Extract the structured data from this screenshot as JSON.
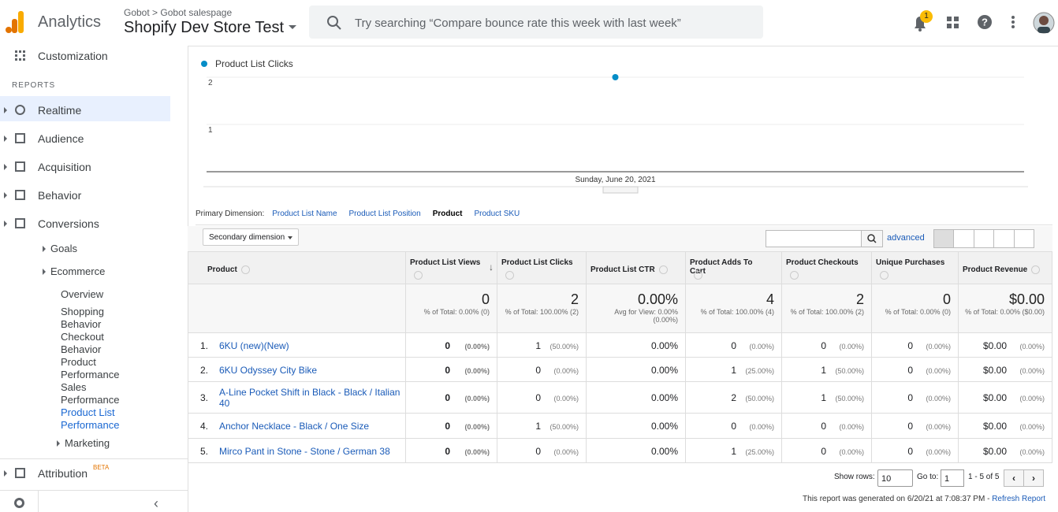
{
  "header": {
    "app": "Analytics",
    "account": "Gobot",
    "property_group": "Gobot salespage",
    "property": "Shopify Dev Store Test",
    "search_placeholder": "Try searching “Compare bounce rate this week with last week”",
    "notifications": "1"
  },
  "sidebar": {
    "items": [
      "Customization",
      "REPORTS",
      "Realtime",
      "Audience",
      "Acquisition",
      "Behavior",
      "Conversions",
      "Goals",
      "Ecommerce",
      "Overview",
      "Shopping Behavior",
      "Checkout Behavior",
      "Product Performance",
      "Sales Performance",
      "Product List Performance",
      "Marketing",
      "Attribution"
    ],
    "beta": "BETA"
  },
  "chart": {
    "legend": "Product List Clicks",
    "x": [
      "Sunday, June 20, 2021"
    ],
    "values": [
      2
    ],
    "ylim": [
      0,
      2.2
    ],
    "yticks": [
      1,
      2
    ]
  },
  "dimensions": {
    "label": "Primary Dimension:",
    "options": [
      "Product List Name",
      "Product List Position",
      "Product",
      "Product SKU"
    ],
    "selected": "Product"
  },
  "toolbar": {
    "secondary": "Secondary dimension",
    "advanced": "advanced"
  },
  "table": {
    "columns": [
      "Product",
      "Product List Views",
      "Product List Clicks",
      "Product List CTR",
      "Product Adds To Cart",
      "Product Checkouts",
      "Unique Purchases",
      "Product Revenue"
    ],
    "totals": [
      [
        "0",
        "% of Total: 0.00% (0)"
      ],
      [
        "2",
        "% of Total: 100.00% (2)"
      ],
      [
        "0.00%",
        "Avg for View: 0.00% (0.00%)"
      ],
      [
        "4",
        "% of Total: 100.00% (4)"
      ],
      [
        "2",
        "% of Total: 100.00% (2)"
      ],
      [
        "0",
        "% of Total: 0.00% (0)"
      ],
      [
        "$0.00",
        "% of Total: 0.00% ($0.00)"
      ]
    ],
    "rows": [
      {
        "index": "1.",
        "product": "6KU (new)(New)",
        "cells": [
          [
            "0",
            "(0.00%)"
          ],
          [
            "1",
            "(50.00%)"
          ],
          [
            "0.00%"
          ],
          [
            "0",
            "(0.00%)"
          ],
          [
            "0",
            "(0.00%)"
          ],
          [
            "0",
            "(0.00%)"
          ],
          [
            "$0.00",
            "(0.00%)"
          ]
        ]
      },
      {
        "index": "2.",
        "product": "6KU Odyssey City Bike",
        "cells": [
          [
            "0",
            "(0.00%)"
          ],
          [
            "0",
            "(0.00%)"
          ],
          [
            "0.00%"
          ],
          [
            "1",
            "(25.00%)"
          ],
          [
            "1",
            "(50.00%)"
          ],
          [
            "0",
            "(0.00%)"
          ],
          [
            "$0.00",
            "(0.00%)"
          ]
        ]
      },
      {
        "index": "3.",
        "product": "A-Line Pocket Shift in Black - Black / Italian 40",
        "cells": [
          [
            "0",
            "(0.00%)"
          ],
          [
            "0",
            "(0.00%)"
          ],
          [
            "0.00%"
          ],
          [
            "2",
            "(50.00%)"
          ],
          [
            "1",
            "(50.00%)"
          ],
          [
            "0",
            "(0.00%)"
          ],
          [
            "$0.00",
            "(0.00%)"
          ]
        ]
      },
      {
        "index": "4.",
        "product": "Anchor Necklace - Black / One Size",
        "cells": [
          [
            "0",
            "(0.00%)"
          ],
          [
            "1",
            "(50.00%)"
          ],
          [
            "0.00%"
          ],
          [
            "0",
            "(0.00%)"
          ],
          [
            "0",
            "(0.00%)"
          ],
          [
            "0",
            "(0.00%)"
          ],
          [
            "$0.00",
            "(0.00%)"
          ]
        ]
      },
      {
        "index": "5.",
        "product": "Mirco Pant in Stone - Stone / German 38",
        "cells": [
          [
            "0",
            "(0.00%)"
          ],
          [
            "0",
            "(0.00%)"
          ],
          [
            "0.00%"
          ],
          [
            "1",
            "(25.00%)"
          ],
          [
            "0",
            "(0.00%)"
          ],
          [
            "0",
            "(0.00%)"
          ],
          [
            "$0.00",
            "(0.00%)"
          ]
        ]
      }
    ]
  },
  "footer": {
    "show_rows": "Show rows:",
    "rows_value": "10",
    "goto": "Go to:",
    "goto_value": "1",
    "range": "1 - 5 of 5",
    "generated": "This report was generated on 6/20/21 at 7:08:37 PM - ",
    "refresh": "Refresh Report"
  }
}
